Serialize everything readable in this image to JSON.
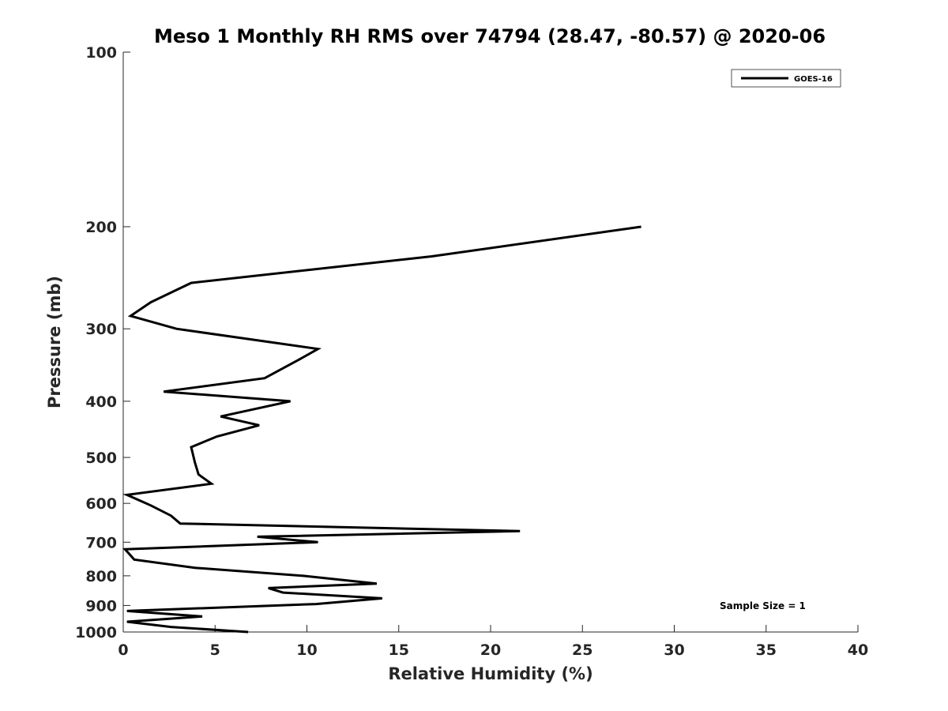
{
  "chart_data": {
    "type": "line",
    "title": "Meso 1 Monthly RH RMS over 74794 (28.47, -80.57) @ 2020-06",
    "xlabel": "Relative Humidity (%)",
    "ylabel": "Pressure (mb)",
    "xlim": [
      0,
      40
    ],
    "ylim": [
      100,
      1000
    ],
    "y_scale": "log",
    "y_reversed": true,
    "x_ticks": [
      0,
      5,
      10,
      15,
      20,
      25,
      30,
      35,
      40
    ],
    "y_ticks": [
      100,
      200,
      300,
      400,
      500,
      600,
      700,
      800,
      900,
      1000
    ],
    "grid": false,
    "legend_position": "top-right",
    "series": [
      {
        "name": "GOES-16",
        "color": "#000000",
        "x": [
          28.2,
          16.8,
          3.7,
          1.5,
          0.4,
          2.9,
          10.6,
          9.5,
          7.7,
          2.2,
          9.1,
          5.3,
          7.4,
          5.1,
          3.7,
          3.9,
          4.1,
          4.8,
          0.2,
          1.5,
          2.6,
          3.1,
          21.6,
          7.3,
          10.6,
          0.1,
          0.6,
          3.9,
          9.8,
          13.8,
          7.9,
          8.7,
          14.1,
          10.5,
          0.2,
          4.3,
          0.2,
          2.6,
          6.8
        ],
        "y": [
          200,
          225,
          250,
          270,
          285,
          300,
          325,
          340,
          365,
          385,
          400,
          425,
          440,
          460,
          480,
          510,
          535,
          555,
          580,
          605,
          630,
          650,
          670,
          685,
          700,
          720,
          750,
          775,
          800,
          825,
          840,
          855,
          875,
          895,
          920,
          940,
          960,
          980,
          1000
        ]
      }
    ],
    "annotations": [
      "Sample Size = 1"
    ]
  }
}
